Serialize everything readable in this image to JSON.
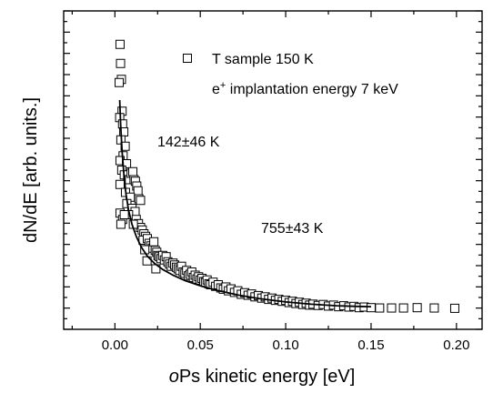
{
  "chart_data": {
    "type": "scatter",
    "xlabel_prefix": "o",
    "xlabel_rest": "Ps kinetic energy [eV]",
    "ylabel": "dN/dE  [arb. units.]",
    "xlim": [
      -0.03,
      0.215
    ],
    "ylim": [
      0,
      1.0
    ],
    "xticks": [
      0.0,
      0.05,
      0.1,
      0.15,
      0.2
    ],
    "xtick_labels": [
      "0.00",
      "0.05",
      "0.10",
      "0.15",
      "0.20"
    ],
    "yticks_count": 15,
    "legend": {
      "marker": "open-square",
      "label": "T sample 150 K",
      "position": "top-right"
    },
    "annotations": {
      "implantation_base": "e",
      "implantation_sup": "+",
      "implantation_rest": " implantation energy 7 keV",
      "temp1": "142±46 K",
      "temp2": "755±43 K"
    },
    "series": [
      {
        "marker": "open-square",
        "points": [
          [
            0.003,
            0.895
          ],
          [
            0.0033,
            0.835
          ],
          [
            0.0038,
            0.785
          ],
          [
            0.0025,
            0.775
          ],
          [
            0.0042,
            0.685
          ],
          [
            0.0028,
            0.665
          ],
          [
            0.0045,
            0.645
          ],
          [
            0.0052,
            0.62
          ],
          [
            0.0035,
            0.595
          ],
          [
            0.006,
            0.575
          ],
          [
            0.0048,
            0.545
          ],
          [
            0.003,
            0.53
          ],
          [
            0.0068,
            0.52
          ],
          [
            0.004,
            0.5
          ],
          [
            0.0055,
            0.485
          ],
          [
            0.0075,
            0.47
          ],
          [
            0.003,
            0.455
          ],
          [
            0.0085,
            0.47
          ],
          [
            0.0095,
            0.49
          ],
          [
            0.0105,
            0.495
          ],
          [
            0.0112,
            0.47
          ],
          [
            0.012,
            0.465
          ],
          [
            0.0128,
            0.45
          ],
          [
            0.0135,
            0.435
          ],
          [
            0.0062,
            0.43
          ],
          [
            0.009,
            0.415
          ],
          [
            0.014,
            0.41
          ],
          [
            0.015,
            0.405
          ],
          [
            0.007,
            0.395
          ],
          [
            0.01,
            0.38
          ],
          [
            0.0118,
            0.37
          ],
          [
            0.008,
            0.36
          ],
          [
            0.003,
            0.365
          ],
          [
            0.0045,
            0.345
          ],
          [
            0.0055,
            0.36
          ],
          [
            0.0125,
            0.345
          ],
          [
            0.0138,
            0.332
          ],
          [
            0.015,
            0.32
          ],
          [
            0.016,
            0.312
          ],
          [
            0.0108,
            0.33
          ],
          [
            0.0035,
            0.33
          ],
          [
            0.017,
            0.3
          ],
          [
            0.018,
            0.292
          ],
          [
            0.0165,
            0.28
          ],
          [
            0.019,
            0.285
          ],
          [
            0.02,
            0.27
          ],
          [
            0.021,
            0.262
          ],
          [
            0.022,
            0.255
          ],
          [
            0.0228,
            0.275
          ],
          [
            0.0236,
            0.248
          ],
          [
            0.0175,
            0.25
          ],
          [
            0.0245,
            0.242
          ],
          [
            0.0252,
            0.232
          ],
          [
            0.026,
            0.228
          ],
          [
            0.027,
            0.222
          ],
          [
            0.028,
            0.232
          ],
          [
            0.029,
            0.218
          ],
          [
            0.03,
            0.228
          ],
          [
            0.031,
            0.212
          ],
          [
            0.032,
            0.205
          ],
          [
            0.0188,
            0.215
          ],
          [
            0.033,
            0.198
          ],
          [
            0.034,
            0.208
          ],
          [
            0.035,
            0.202
          ],
          [
            0.036,
            0.195
          ],
          [
            0.024,
            0.19
          ],
          [
            0.037,
            0.19
          ],
          [
            0.038,
            0.185
          ],
          [
            0.039,
            0.198
          ],
          [
            0.04,
            0.18
          ],
          [
            0.041,
            0.176
          ],
          [
            0.042,
            0.185
          ],
          [
            0.043,
            0.168
          ],
          [
            0.044,
            0.173
          ],
          [
            0.045,
            0.18
          ],
          [
            0.046,
            0.163
          ],
          [
            0.047,
            0.17
          ],
          [
            0.048,
            0.158
          ],
          [
            0.049,
            0.165
          ],
          [
            0.05,
            0.155
          ],
          [
            0.051,
            0.16
          ],
          [
            0.052,
            0.15
          ],
          [
            0.053,
            0.147
          ],
          [
            0.054,
            0.155
          ],
          [
            0.055,
            0.143
          ],
          [
            0.056,
            0.14
          ],
          [
            0.0575,
            0.148
          ],
          [
            0.059,
            0.135
          ],
          [
            0.0605,
            0.14
          ],
          [
            0.062,
            0.13
          ],
          [
            0.0635,
            0.126
          ],
          [
            0.065,
            0.133
          ],
          [
            0.0665,
            0.121
          ],
          [
            0.068,
            0.127
          ],
          [
            0.07,
            0.116
          ],
          [
            0.072,
            0.121
          ],
          [
            0.074,
            0.11
          ],
          [
            0.076,
            0.115
          ],
          [
            0.078,
            0.107
          ],
          [
            0.08,
            0.111
          ],
          [
            0.082,
            0.102
          ],
          [
            0.084,
            0.106
          ],
          [
            0.086,
            0.098
          ],
          [
            0.088,
            0.102
          ],
          [
            0.09,
            0.094
          ],
          [
            0.092,
            0.098
          ],
          [
            0.094,
            0.091
          ],
          [
            0.096,
            0.094
          ],
          [
            0.098,
            0.088
          ],
          [
            0.1,
            0.091
          ],
          [
            0.102,
            0.084
          ],
          [
            0.104,
            0.088
          ],
          [
            0.106,
            0.081
          ],
          [
            0.108,
            0.085
          ],
          [
            0.11,
            0.078
          ],
          [
            0.112,
            0.082
          ],
          [
            0.114,
            0.076
          ],
          [
            0.116,
            0.079
          ],
          [
            0.119,
            0.075
          ],
          [
            0.122,
            0.078
          ],
          [
            0.125,
            0.073
          ],
          [
            0.128,
            0.076
          ],
          [
            0.131,
            0.071
          ],
          [
            0.134,
            0.074
          ],
          [
            0.137,
            0.07
          ],
          [
            0.14,
            0.072
          ],
          [
            0.143,
            0.068
          ],
          [
            0.146,
            0.07
          ],
          [
            0.15,
            0.068
          ],
          [
            0.155,
            0.067
          ],
          [
            0.162,
            0.067
          ],
          [
            0.169,
            0.067
          ],
          [
            0.177,
            0.068
          ],
          [
            0.187,
            0.067
          ],
          [
            0.199,
            0.066
          ]
        ]
      },
      {
        "name": "",
        "style": "solid-line",
        "points": [
          [
            0.0028,
            0.72
          ],
          [
            0.0034,
            0.64
          ],
          [
            0.0042,
            0.56
          ],
          [
            0.0052,
            0.49
          ],
          [
            0.0065,
            0.425
          ],
          [
            0.008,
            0.375
          ],
          [
            0.01,
            0.33
          ],
          [
            0.0125,
            0.292
          ],
          [
            0.0155,
            0.258
          ],
          [
            0.019,
            0.23
          ],
          [
            0.023,
            0.208
          ],
          [
            0.028,
            0.188
          ],
          [
            0.034,
            0.17
          ],
          [
            0.041,
            0.153
          ],
          [
            0.05,
            0.137
          ],
          [
            0.06,
            0.122
          ],
          [
            0.072,
            0.108
          ],
          [
            0.085,
            0.096
          ],
          [
            0.1,
            0.086
          ],
          [
            0.115,
            0.079
          ],
          [
            0.13,
            0.074
          ],
          [
            0.142,
            0.072
          ],
          [
            0.15,
            0.071
          ]
        ]
      }
    ]
  }
}
